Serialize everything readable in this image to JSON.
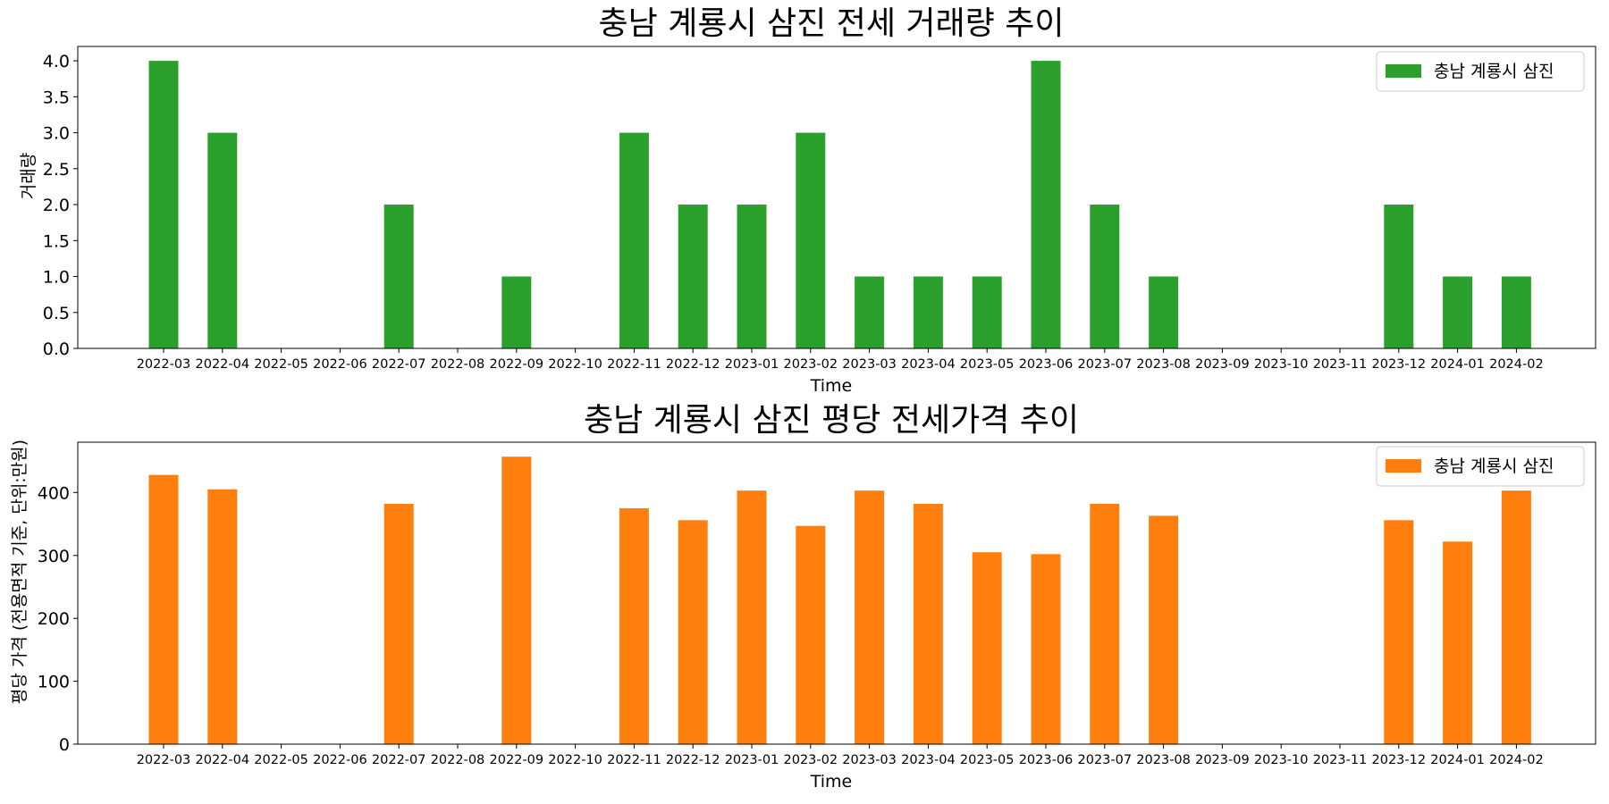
{
  "chart_data": [
    {
      "type": "bar",
      "title": "충남 계룡시 삼진 전세 거래량 추이",
      "xlabel": "Time",
      "ylabel": "거래량",
      "ylim": [
        0,
        4.2
      ],
      "yticks": [
        0.0,
        0.5,
        1.0,
        1.5,
        2.0,
        2.5,
        3.0,
        3.5,
        4.0
      ],
      "ytick_format": "fixed1",
      "grid": false,
      "legend_position": "top-right",
      "categories": [
        "2022-03",
        "2022-04",
        "2022-05",
        "2022-06",
        "2022-07",
        "2022-08",
        "2022-09",
        "2022-10",
        "2022-11",
        "2022-12",
        "2023-01",
        "2023-02",
        "2023-03",
        "2023-04",
        "2023-05",
        "2023-06",
        "2023-07",
        "2023-08",
        "2023-09",
        "2023-10",
        "2023-11",
        "2023-12",
        "2024-01",
        "2024-02"
      ],
      "series": [
        {
          "name": "충남 계룡시 삼진",
          "color": "#2ca02c",
          "values": [
            4,
            3,
            0,
            0,
            2,
            0,
            1,
            0,
            3,
            2,
            2,
            3,
            1,
            1,
            1,
            4,
            2,
            1,
            0,
            0,
            0,
            2,
            1,
            1
          ]
        }
      ]
    },
    {
      "type": "bar",
      "title": "충남 계룡시 삼진 평당 전세가격 추이",
      "xlabel": "Time",
      "ylabel": "평당 가격 (전용면적 기준, 단위:만원)",
      "ylim": [
        0,
        480
      ],
      "yticks": [
        0,
        100,
        200,
        300,
        400
      ],
      "ytick_format": "int",
      "grid": false,
      "legend_position": "top-right",
      "categories": [
        "2022-03",
        "2022-04",
        "2022-05",
        "2022-06",
        "2022-07",
        "2022-08",
        "2022-09",
        "2022-10",
        "2022-11",
        "2022-12",
        "2023-01",
        "2023-02",
        "2023-03",
        "2023-04",
        "2023-05",
        "2023-06",
        "2023-07",
        "2023-08",
        "2023-09",
        "2023-10",
        "2023-11",
        "2023-12",
        "2024-01",
        "2024-02"
      ],
      "series": [
        {
          "name": "충남 계룡시 삼진",
          "color": "#ff7f0e",
          "values": [
            428,
            405,
            0,
            0,
            382,
            0,
            457,
            0,
            375,
            356,
            403,
            347,
            403,
            382,
            305,
            302,
            382,
            363,
            0,
            0,
            0,
            356,
            322,
            403
          ]
        }
      ]
    }
  ]
}
